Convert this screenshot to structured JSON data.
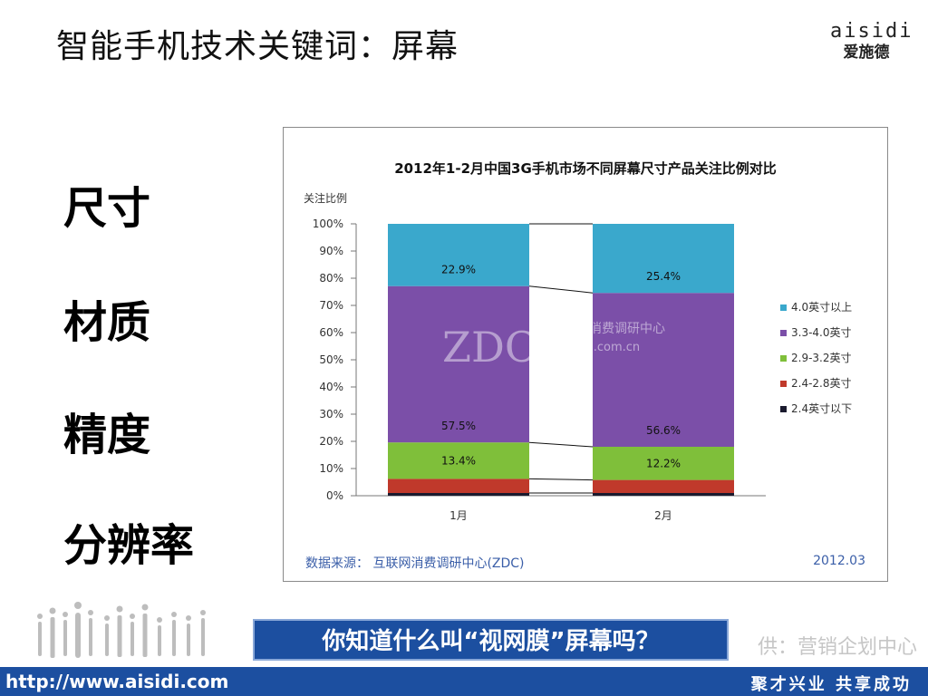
{
  "slide": {
    "title": "智能手机技术关键词：屏幕",
    "logo_latin": "aisidi",
    "logo_cn": "爱施德",
    "keywords": [
      "尺寸",
      "材质",
      "精度",
      "分辨率"
    ],
    "question": "你知道什么叫“视网膜”屏幕吗？",
    "credit": "供：营销企划中心",
    "url": "http://www.aisidi.com",
    "slogan": "聚才兴业  共享成功"
  },
  "chart_data": {
    "type": "bar",
    "stacked": true,
    "title": "2012年1-2月中国3G手机市场不同屏幕尺寸产品关注比例对比",
    "ylabel": "关注比例",
    "xlabel": "",
    "categories": [
      "1月",
      "2月"
    ],
    "ylim": [
      0,
      100
    ],
    "yticks": [
      "0%",
      "10%",
      "20%",
      "30%",
      "40%",
      "50%",
      "60%",
      "70%",
      "80%",
      "90%",
      "100%"
    ],
    "series": [
      {
        "name": "2.4英寸以下",
        "values": [
          1.0,
          1.0
        ],
        "color": "#1a1a2e"
      },
      {
        "name": "2.4-2.8英寸",
        "values": [
          5.2,
          4.8
        ],
        "color": "#c0392b"
      },
      {
        "name": "2.9-3.2英寸",
        "values": [
          13.4,
          12.2
        ],
        "color": "#7fbf3a"
      },
      {
        "name": "3.3-4.0英寸",
        "values": [
          57.5,
          56.6
        ],
        "color": "#7b4fa8"
      },
      {
        "name": "4.0英寸以上",
        "values": [
          22.9,
          25.4
        ],
        "color": "#3aa8cc"
      }
    ],
    "data_labels": [
      {
        "category": "1月",
        "series": "4.0英寸以上",
        "text": "22.9%"
      },
      {
        "category": "2月",
        "series": "4.0英寸以上",
        "text": "25.4%"
      },
      {
        "category": "1月",
        "series": "3.3-4.0英寸",
        "text": "57.5%"
      },
      {
        "category": "2月",
        "series": "3.3-4.0英寸",
        "text": "56.6%"
      },
      {
        "category": "1月",
        "series": "2.9-3.2英寸",
        "text": "13.4%"
      },
      {
        "category": "2月",
        "series": "2.9-3.2英寸",
        "text": "12.2%"
      }
    ],
    "legend_position": "right",
    "watermark": {
      "big": "ZDC",
      "line1": "互联网消费调研中心",
      "line2": "zdc.zol.com.cn"
    },
    "source": "数据来源：  互联网消费调研中心(ZDC)",
    "date": "2012.03"
  }
}
